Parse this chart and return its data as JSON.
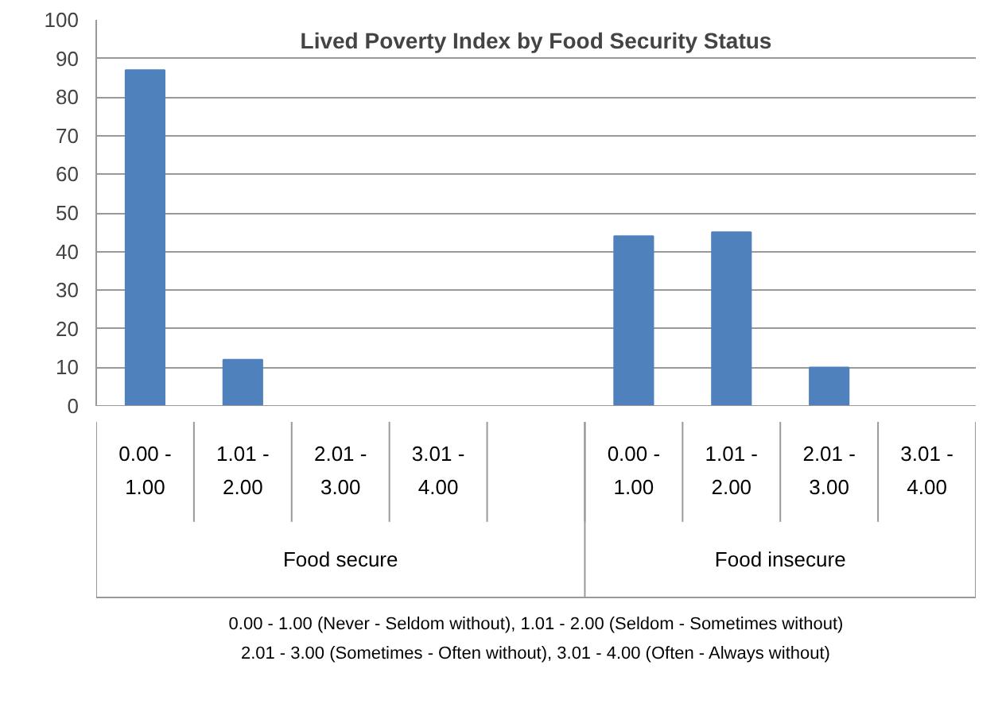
{
  "chart_data": {
    "type": "bar",
    "title": "Lived Poverty Index by Food Security Status",
    "categories": [
      "0.00 - 1.00",
      "1.01 - 2.00",
      "2.01 - 3.00",
      "3.01 - 4.00",
      null,
      "0.00 - 1.00",
      "1.01 - 2.00",
      "2.01 - 3.00",
      "3.01 - 4.00"
    ],
    "values": [
      87,
      12,
      0,
      0,
      null,
      44,
      45,
      10,
      0
    ],
    "color": "#4f81bd",
    "ylim": [
      0,
      100
    ],
    "yticks": [
      0,
      10,
      20,
      30,
      40,
      50,
      60,
      70,
      80,
      90,
      100
    ],
    "grid": "y",
    "annotations": [
      "Food secure",
      "Food insecure",
      "0.00 - 1.00 (Never - Seldom without), 1.01 - 2.00 (Seldom - Sometimes without)",
      "2.01 - 3.00 (Sometimes - Often without), 3.01 - 4.00 (Often - Always without)"
    ]
  }
}
